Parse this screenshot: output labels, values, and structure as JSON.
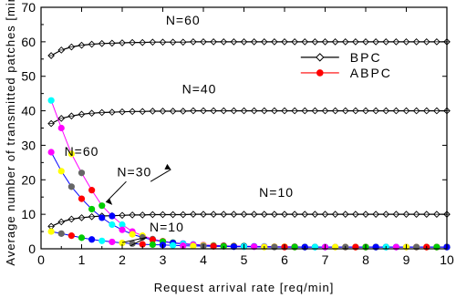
{
  "chart_data": {
    "type": "line",
    "title": "",
    "xlabel": "Request arrival rate [req/min]",
    "ylabel": "Average number of transmitted patches [min]",
    "xlim": [
      0,
      10
    ],
    "ylim": [
      0,
      70
    ],
    "x_ticks": [
      "0",
      "1",
      "2",
      "3",
      "4",
      "5",
      "6",
      "7",
      "8",
      "9",
      "10"
    ],
    "y_ticks": [
      "0",
      "10",
      "20",
      "30",
      "40",
      "50",
      "60",
      "70"
    ],
    "grid": false,
    "legend_position": "top-right",
    "legend": [
      {
        "label": "BPC",
        "color": "#000000",
        "marker": "diamond-open"
      },
      {
        "label": "ABPC",
        "color": "#ff0000",
        "marker": "circle-filled"
      }
    ],
    "annotations": [
      {
        "text": "N=60",
        "x": 3.5,
        "y": 65
      },
      {
        "text": "N=40",
        "x": 3.9,
        "y": 45
      },
      {
        "text": "N=60",
        "x": 1.0,
        "y": 27
      },
      {
        "text": "N=30",
        "x": 2.3,
        "y": 21
      },
      {
        "text": "N=10",
        "x": 5.8,
        "y": 15
      },
      {
        "text": "N=10",
        "x": 3.1,
        "y": 5
      }
    ],
    "marker_palette": [
      "#ff0000",
      "#00cc00",
      "#0000ff",
      "#00ffff",
      "#ff00ff",
      "#ffff00",
      "#666666"
    ],
    "x": [
      0.25,
      0.5,
      0.75,
      1.0,
      1.25,
      1.5,
      1.75,
      2.0,
      2.25,
      2.5,
      2.75,
      3.0,
      3.25,
      3.5,
      3.75,
      4.0,
      4.25,
      4.5,
      4.75,
      5.0,
      5.25,
      5.5,
      5.75,
      6.0,
      6.25,
      6.5,
      6.75,
      7.0,
      7.25,
      7.5,
      7.75,
      8.0,
      8.25,
      8.5,
      8.75,
      9.0,
      9.25,
      9.5,
      9.75,
      10.0
    ],
    "series": [
      {
        "name": "BPC",
        "N": 60,
        "style": "bpc",
        "values": [
          56,
          57.6,
          58.5,
          59.0,
          59.3,
          59.5,
          59.6,
          59.7,
          59.8,
          59.8,
          59.9,
          59.9,
          59.9,
          59.9,
          60,
          60,
          60,
          60,
          60,
          60,
          60,
          60,
          60,
          60,
          60,
          60,
          60,
          60,
          60,
          60,
          60,
          60,
          60,
          60,
          60,
          60,
          60,
          60,
          60,
          60
        ]
      },
      {
        "name": "BPC",
        "N": 40,
        "style": "bpc",
        "values": [
          36.3,
          37.8,
          38.5,
          39.0,
          39.3,
          39.5,
          39.6,
          39.7,
          39.8,
          39.8,
          39.9,
          39.9,
          39.9,
          39.9,
          40,
          40,
          40,
          40,
          40,
          40,
          40,
          40,
          40,
          40,
          40,
          40,
          40,
          40,
          40,
          40,
          40,
          40,
          40,
          40,
          40,
          40,
          40,
          40,
          40,
          40
        ]
      },
      {
        "name": "BPC",
        "N": 10,
        "style": "bpc",
        "values": [
          6.5,
          7.8,
          8.6,
          9.0,
          9.3,
          9.5,
          9.6,
          9.7,
          9.8,
          9.8,
          9.9,
          9.9,
          9.9,
          9.9,
          10,
          10,
          10,
          10,
          10,
          10,
          10,
          10,
          10,
          10,
          10,
          10,
          10,
          10,
          10,
          10,
          10,
          10,
          10,
          10,
          10,
          10,
          10,
          10,
          10,
          10
        ]
      },
      {
        "name": "ABPC",
        "N": 60,
        "style": "abpc",
        "line_color": "#ff00ff",
        "values": [
          43,
          35,
          27.5,
          22,
          17,
          12.5,
          9.5,
          7,
          5,
          3.8,
          2.8,
          2.2,
          1.8,
          1.5,
          1.3,
          1.1,
          1.0,
          0.9,
          0.8,
          0.8,
          0.7,
          0.7,
          0.6,
          0.6,
          0.6,
          0.5,
          0.5,
          0.5,
          0.5,
          0.5,
          0.5,
          0.5,
          0.5,
          0.5,
          0.5,
          0.5,
          0.5,
          0.5,
          0.5,
          0.5
        ]
      },
      {
        "name": "ABPC",
        "N": 30,
        "style": "abpc",
        "line_color": "#0000ff",
        "values": [
          28,
          22.5,
          18,
          14.5,
          11.5,
          9,
          7,
          5.5,
          4.2,
          3.3,
          2.6,
          2.1,
          1.7,
          1.4,
          1.2,
          1.0,
          0.9,
          0.8,
          0.7,
          0.7,
          0.6,
          0.6,
          0.6,
          0.5,
          0.5,
          0.5,
          0.5,
          0.5,
          0.5,
          0.5,
          0.5,
          0.5,
          0.5,
          0.5,
          0.5,
          0.5,
          0.5,
          0.5,
          0.5,
          0.5
        ]
      },
      {
        "name": "ABPC",
        "N": 10,
        "style": "abpc",
        "line_color": "#0000ff",
        "values": [
          5.0,
          4.4,
          3.8,
          3.2,
          2.7,
          2.3,
          2.0,
          1.7,
          1.5,
          1.3,
          1.2,
          1.1,
          1.0,
          0.9,
          0.8,
          0.8,
          0.7,
          0.7,
          0.6,
          0.6,
          0.6,
          0.5,
          0.5,
          0.5,
          0.5,
          0.5,
          0.5,
          0.5,
          0.5,
          0.5,
          0.5,
          0.5,
          0.5,
          0.5,
          0.5,
          0.5,
          0.5,
          0.5,
          0.5,
          0.5
        ]
      }
    ]
  }
}
